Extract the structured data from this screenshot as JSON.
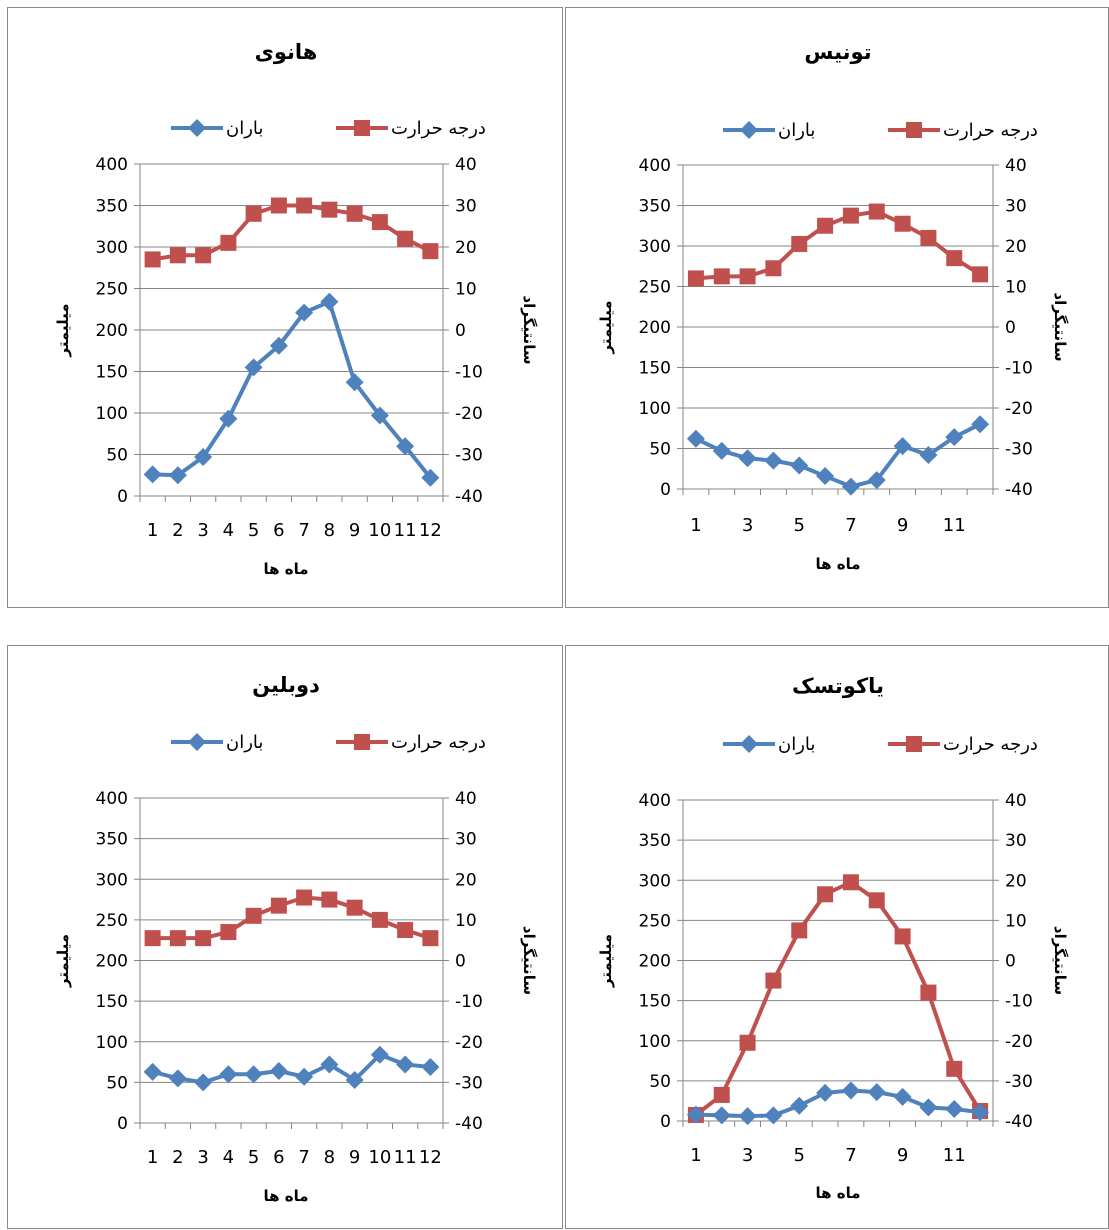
{
  "legend": {
    "temperature": "درجه حرارت",
    "rain": "باران"
  },
  "colors": {
    "temperature": "#c0504d",
    "rain": "#4f81bd",
    "grid": "#868686",
    "axis": "#868686"
  },
  "chart_data": [
    {
      "type": "line",
      "title": "هانوی",
      "xlabel": "ماه ها",
      "ylabel": "میلیمتر",
      "y2label": "سانتیگراد",
      "categories": [
        "1",
        "2",
        "3",
        "4",
        "5",
        "6",
        "7",
        "8",
        "9",
        "10",
        "11",
        "12"
      ],
      "tick_labels": [
        "1",
        "2",
        "3",
        "4",
        "5",
        "6",
        "7",
        "8",
        "9",
        "10",
        "11",
        "12"
      ],
      "ylim": [
        0,
        400
      ],
      "y2lim": [
        -40,
        40
      ],
      "yticks": [
        "0",
        "50",
        "100",
        "150",
        "200",
        "250",
        "300",
        "350",
        "400"
      ],
      "y2ticks": [
        "-40",
        "-30",
        "-20",
        "-10",
        "0",
        "10",
        "20",
        "30",
        "40"
      ],
      "legend_position": "top",
      "series": [
        {
          "name": "درجه حرارت",
          "axis": "right",
          "values": [
            17,
            18,
            18,
            21,
            28,
            30,
            30,
            29,
            28,
            26,
            22,
            19
          ]
        },
        {
          "name": "باران",
          "axis": "left",
          "values": [
            26,
            25,
            47,
            93,
            155,
            181,
            221,
            234,
            137,
            97,
            60,
            22
          ]
        }
      ]
    },
    {
      "type": "line",
      "title": "تونیس",
      "xlabel": "ماه ها",
      "ylabel": "میلیمتر",
      "y2label": "سانتیگراد",
      "categories": [
        "1",
        "2",
        "3",
        "4",
        "5",
        "6",
        "7",
        "8",
        "9",
        "10",
        "11",
        "12"
      ],
      "tick_labels": [
        "1",
        "",
        "3",
        "",
        "5",
        "",
        "7",
        "",
        "9",
        "",
        "11",
        ""
      ],
      "ylim": [
        0,
        400
      ],
      "y2lim": [
        -40,
        40
      ],
      "yticks": [
        "0",
        "50",
        "100",
        "150",
        "200",
        "250",
        "300",
        "350",
        "400"
      ],
      "y2ticks": [
        "-40",
        "-30",
        "-20",
        "-10",
        "0",
        "10",
        "20",
        "30",
        "40"
      ],
      "legend_position": "top",
      "series": [
        {
          "name": "درجه حرارت",
          "axis": "right",
          "values": [
            12,
            12.5,
            12.5,
            14.5,
            20.5,
            25,
            27.5,
            28.5,
            25.5,
            22,
            17,
            13
          ]
        },
        {
          "name": "باران",
          "axis": "left",
          "values": [
            62,
            47,
            38,
            35,
            29,
            16,
            3,
            11,
            53,
            42,
            64,
            80
          ]
        }
      ]
    },
    {
      "type": "line",
      "title": "دوبلین",
      "xlabel": "ماه ها",
      "ylabel": "میلیمتر",
      "y2label": "سانتیگراد",
      "categories": [
        "1",
        "2",
        "3",
        "4",
        "5",
        "6",
        "7",
        "8",
        "9",
        "10",
        "11",
        "12"
      ],
      "tick_labels": [
        "1",
        "2",
        "3",
        "4",
        "5",
        "6",
        "7",
        "8",
        "9",
        "10",
        "11",
        "12"
      ],
      "ylim": [
        0,
        400
      ],
      "y2lim": [
        -40,
        40
      ],
      "yticks": [
        "0",
        "50",
        "100",
        "150",
        "200",
        "250",
        "300",
        "350",
        "400"
      ],
      "y2ticks": [
        "-40",
        "-30",
        "-20",
        "-10",
        "0",
        "10",
        "20",
        "30",
        "40"
      ],
      "legend_position": "top",
      "series": [
        {
          "name": "درجه حرارت",
          "axis": "right",
          "values": [
            5.5,
            5.5,
            5.5,
            7,
            11,
            13.5,
            15.5,
            15,
            13,
            10,
            7.5,
            5.5
          ]
        },
        {
          "name": "باران",
          "axis": "left",
          "values": [
            63,
            55,
            50,
            60,
            60,
            64,
            57,
            72,
            53,
            84,
            72,
            69
          ]
        }
      ]
    },
    {
      "type": "line",
      "title": "یاکوتسک",
      "xlabel": "ماه ها",
      "ylabel": "میلیمتر",
      "y2label": "سانتیگراد",
      "categories": [
        "1",
        "2",
        "3",
        "4",
        "5",
        "6",
        "7",
        "8",
        "9",
        "10",
        "11",
        "12"
      ],
      "tick_labels": [
        "1",
        "",
        "3",
        "",
        "5",
        "",
        "7",
        "",
        "9",
        "",
        "11",
        ""
      ],
      "ylim": [
        0,
        400
      ],
      "y2lim": [
        -40,
        40
      ],
      "yticks": [
        "0",
        "50",
        "100",
        "150",
        "200",
        "250",
        "300",
        "350",
        "400"
      ],
      "y2ticks": [
        "-40",
        "-30",
        "-20",
        "-10",
        "0",
        "10",
        "20",
        "30",
        "40"
      ],
      "legend_position": "top",
      "series": [
        {
          "name": "درجه حرارت",
          "axis": "right",
          "values": [
            -38.5,
            -33.5,
            -20.5,
            -5,
            7.5,
            16.5,
            19.5,
            15,
            6,
            -8,
            -27,
            -37.5
          ]
        },
        {
          "name": "باران",
          "axis": "left",
          "values": [
            8,
            7,
            6,
            7,
            19,
            35,
            38,
            36,
            30,
            17,
            15,
            11
          ]
        }
      ]
    }
  ]
}
